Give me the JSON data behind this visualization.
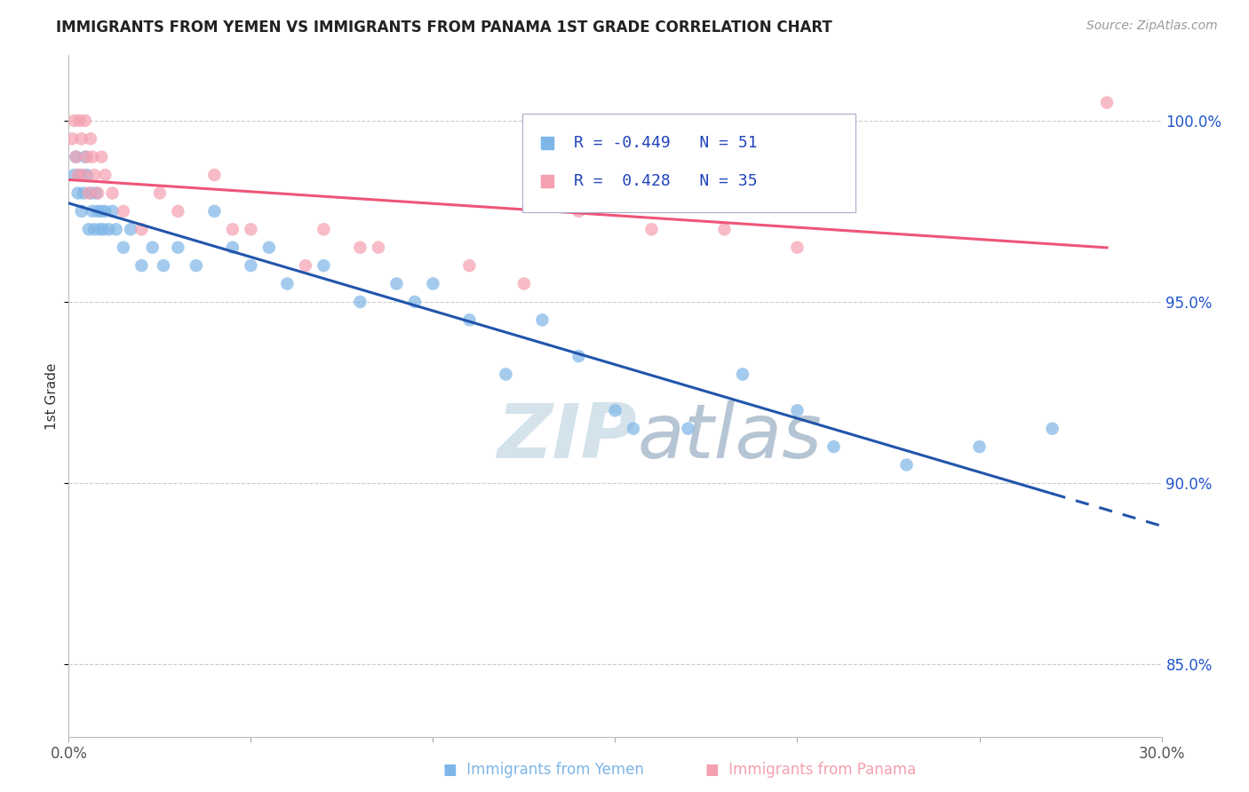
{
  "title": "IMMIGRANTS FROM YEMEN VS IMMIGRANTS FROM PANAMA 1ST GRADE CORRELATION CHART",
  "source": "Source: ZipAtlas.com",
  "ylabel": "1st Grade",
  "y_ticks": [
    85.0,
    90.0,
    95.0,
    100.0
  ],
  "y_tick_labels": [
    "85.0%",
    "90.0%",
    "95.0%",
    "100.0%"
  ],
  "x_min": 0.0,
  "x_max": 30.0,
  "y_min": 83.0,
  "y_max": 101.8,
  "yemen_R": -0.449,
  "yemen_N": 51,
  "panama_R": 0.428,
  "panama_N": 35,
  "yemen_color": "#7EB6E8",
  "panama_color": "#F4A0B0",
  "trend_yemen_color": "#2255AA",
  "trend_panama_color": "#EE5577",
  "legend_text_color": "#2244BB",
  "watermark_color": "#CCDDEE",
  "yemen_x": [
    0.15,
    0.2,
    0.25,
    0.3,
    0.35,
    0.4,
    0.45,
    0.5,
    0.55,
    0.6,
    0.65,
    0.7,
    0.75,
    0.8,
    0.85,
    0.9,
    0.95,
    1.0,
    1.1,
    1.2,
    1.3,
    1.5,
    1.7,
    2.0,
    2.3,
    2.6,
    3.0,
    3.5,
    4.0,
    4.5,
    5.0,
    5.5,
    6.0,
    7.0,
    8.0,
    9.0,
    9.5,
    10.0,
    11.0,
    12.0,
    13.0,
    14.0,
    15.0,
    15.5,
    17.0,
    18.5,
    20.0,
    21.0,
    23.0,
    25.0,
    27.0
  ],
  "yemen_y": [
    98.5,
    99.0,
    98.0,
    98.5,
    97.5,
    98.0,
    99.0,
    98.5,
    97.0,
    98.0,
    97.5,
    97.0,
    98.0,
    97.5,
    97.0,
    97.5,
    97.0,
    97.5,
    97.0,
    97.5,
    97.0,
    96.5,
    97.0,
    96.0,
    96.5,
    96.0,
    96.5,
    96.0,
    97.5,
    96.5,
    96.0,
    96.5,
    95.5,
    96.0,
    95.0,
    95.5,
    95.0,
    95.5,
    94.5,
    93.0,
    94.5,
    93.5,
    92.0,
    91.5,
    91.5,
    93.0,
    92.0,
    91.0,
    90.5,
    91.0,
    91.5
  ],
  "panama_x": [
    0.1,
    0.15,
    0.2,
    0.25,
    0.3,
    0.35,
    0.4,
    0.45,
    0.5,
    0.55,
    0.6,
    0.65,
    0.7,
    0.8,
    0.9,
    1.0,
    1.2,
    1.5,
    2.0,
    2.5,
    3.0,
    4.0,
    4.5,
    5.0,
    6.5,
    7.0,
    8.0,
    8.5,
    11.0,
    12.5,
    14.0,
    16.0,
    18.0,
    20.0,
    28.5
  ],
  "panama_y": [
    99.5,
    100.0,
    99.0,
    98.5,
    100.0,
    99.5,
    98.5,
    100.0,
    99.0,
    98.0,
    99.5,
    99.0,
    98.5,
    98.0,
    99.0,
    98.5,
    98.0,
    97.5,
    97.0,
    98.0,
    97.5,
    98.5,
    97.0,
    97.0,
    96.0,
    97.0,
    96.5,
    96.5,
    96.0,
    95.5,
    97.5,
    97.0,
    97.0,
    96.5,
    100.5
  ]
}
